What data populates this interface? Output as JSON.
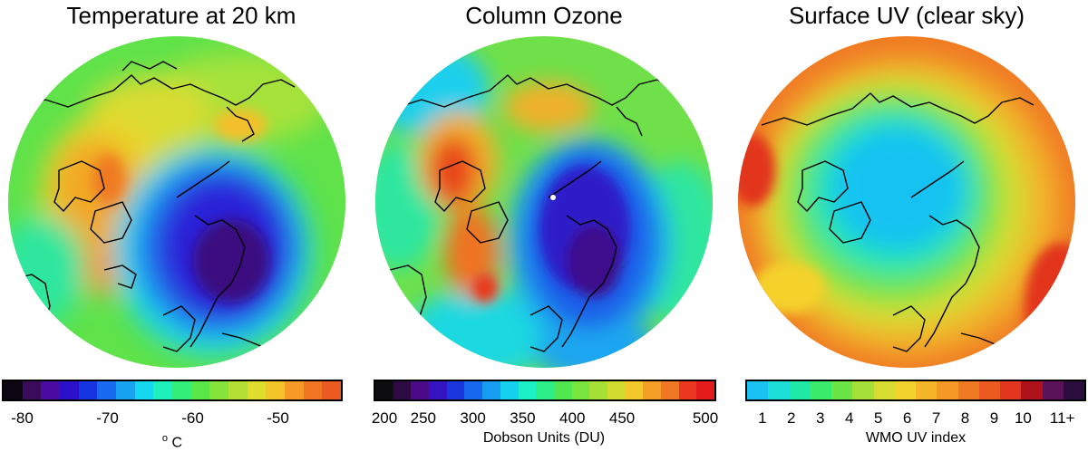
{
  "panels": [
    {
      "title": "Temperature at 20 km",
      "colorbar": {
        "colors": [
          "#0b0612",
          "#3a0a5c",
          "#4b0aa0",
          "#2a10c8",
          "#1535e0",
          "#1a6aef",
          "#17a3f2",
          "#15d8ee",
          "#1ef0bc",
          "#34ee7a",
          "#57e848",
          "#85e43c",
          "#b4e035",
          "#e0dc2e",
          "#f4c42a",
          "#f59a26",
          "#f07422",
          "#eb5a20"
        ],
        "ticks": [
          "-80",
          "-70",
          "-60",
          "-50"
        ],
        "unit_symbol": "o",
        "unit": "C"
      }
    },
    {
      "title": "Column Ozone",
      "colorbar": {
        "colors": [
          "#0d0d10",
          "#2e0a44",
          "#4b0a88",
          "#3314c0",
          "#1c36de",
          "#1868ee",
          "#179cf2",
          "#16d0ef",
          "#1bf0c6",
          "#2eee8a",
          "#4fe850",
          "#7ae43e",
          "#a6e036",
          "#d2dc30",
          "#f2c82b",
          "#f59e27",
          "#f07823",
          "#ea3820",
          "#e41b1b"
        ],
        "ticks": [
          "200",
          "250",
          "300",
          "350",
          "400",
          "450",
          "500"
        ],
        "unit": "Dobson Units (DU)"
      }
    },
    {
      "title": "Surface UV (clear sky)",
      "colorbar": {
        "colors": [
          "#19c2f2",
          "#1ce0d8",
          "#1fe9a4",
          "#3aea6a",
          "#6be446",
          "#a4e038",
          "#d6dc30",
          "#f4d22c",
          "#f6b62a",
          "#f49826",
          "#f07a23",
          "#eb5a21",
          "#e2361f",
          "#b0121c",
          "#5a1258",
          "#2a0d3c"
        ],
        "ticks": [
          "1",
          "2",
          "3",
          "4",
          "5",
          "6",
          "7",
          "8",
          "9",
          "10",
          "11+"
        ],
        "unit": "WMO UV index"
      }
    }
  ]
}
